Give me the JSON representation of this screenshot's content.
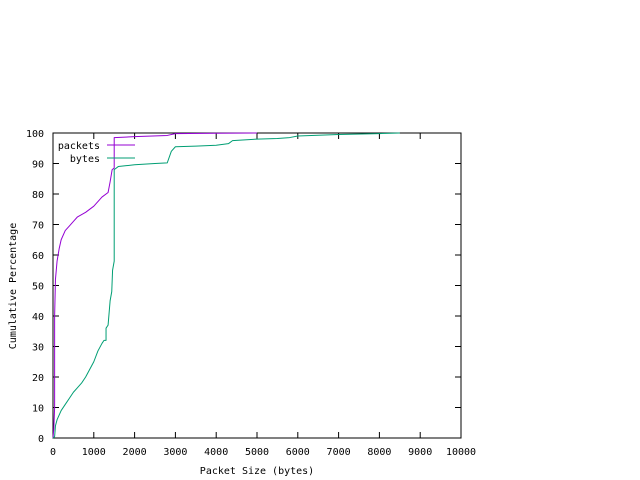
{
  "chart_data": {
    "type": "line",
    "title": "",
    "xlabel": "Packet Size (bytes)",
    "ylabel": "Cumulative Percentage",
    "xlim": [
      0,
      10000
    ],
    "ylim": [
      0,
      100
    ],
    "xticks": [
      0,
      1000,
      2000,
      3000,
      4000,
      5000,
      6000,
      7000,
      8000,
      9000,
      10000
    ],
    "yticks": [
      0,
      10,
      20,
      30,
      40,
      50,
      60,
      70,
      80,
      90,
      100
    ],
    "grid": false,
    "legend_position": "top-left",
    "series": [
      {
        "name": "packets",
        "color": "#9400d3",
        "points": [
          [
            0,
            0
          ],
          [
            20,
            3
          ],
          [
            40,
            10
          ],
          [
            40,
            40
          ],
          [
            60,
            52
          ],
          [
            100,
            58
          ],
          [
            150,
            62
          ],
          [
            200,
            65
          ],
          [
            300,
            68
          ],
          [
            400,
            69.5
          ],
          [
            500,
            71
          ],
          [
            600,
            72.5
          ],
          [
            800,
            74
          ],
          [
            1000,
            76
          ],
          [
            1200,
            79
          ],
          [
            1350,
            80.5
          ],
          [
            1400,
            84
          ],
          [
            1450,
            88
          ],
          [
            1500,
            88.5
          ],
          [
            1500,
            98.5
          ],
          [
            2000,
            98.8
          ],
          [
            2800,
            99.2
          ],
          [
            3000,
            99.8
          ],
          [
            4000,
            99.9
          ],
          [
            5000,
            100
          ]
        ]
      },
      {
        "name": "bytes",
        "color": "#009e73",
        "points": [
          [
            0,
            0
          ],
          [
            40,
            0.5
          ],
          [
            60,
            4
          ],
          [
            100,
            6
          ],
          [
            200,
            9
          ],
          [
            300,
            11
          ],
          [
            400,
            13
          ],
          [
            500,
            15
          ],
          [
            600,
            16.5
          ],
          [
            700,
            18
          ],
          [
            800,
            20
          ],
          [
            900,
            22.5
          ],
          [
            1000,
            25
          ],
          [
            1100,
            28.5
          ],
          [
            1200,
            31
          ],
          [
            1250,
            32
          ],
          [
            1300,
            32
          ],
          [
            1300,
            36
          ],
          [
            1350,
            37
          ],
          [
            1400,
            45
          ],
          [
            1440,
            48
          ],
          [
            1460,
            55
          ],
          [
            1500,
            58
          ],
          [
            1500,
            88
          ],
          [
            1600,
            89
          ],
          [
            1800,
            89.3
          ],
          [
            2000,
            89.6
          ],
          [
            2500,
            90
          ],
          [
            2800,
            90.2
          ],
          [
            2900,
            94
          ],
          [
            3000,
            95.5
          ],
          [
            3500,
            95.7
          ],
          [
            4000,
            96
          ],
          [
            4300,
            96.5
          ],
          [
            4400,
            97.5
          ],
          [
            5000,
            98
          ],
          [
            5500,
            98.2
          ],
          [
            5800,
            98.5
          ],
          [
            6000,
            99
          ],
          [
            7000,
            99.5
          ],
          [
            8000,
            99.8
          ],
          [
            8500,
            100
          ]
        ]
      }
    ]
  }
}
